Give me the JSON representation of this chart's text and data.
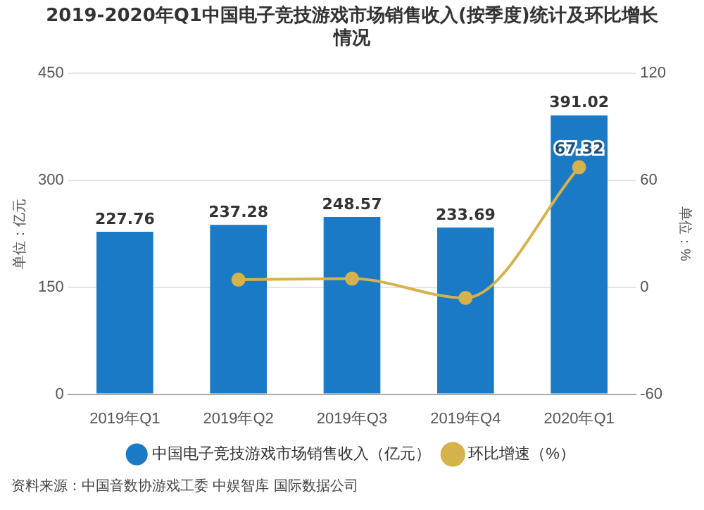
{
  "chart_data": {
    "type": "bar",
    "title": "2019-2020年Q1中国电子竞技游戏市场销售收入(按季度)统计及环比增长情况",
    "categories": [
      "2019年Q1",
      "2019年Q2",
      "2019年Q3",
      "2019年Q4",
      "2020年Q1"
    ],
    "series": [
      {
        "name": "中国电子竞技游戏市场销售收入（亿元）",
        "color": "#1a7ac6",
        "values": [
          227.76,
          237.28,
          248.57,
          233.69,
          391.02
        ],
        "data_labels": true
      },
      {
        "name": "环比增速（%）",
        "type": "line",
        "axis": "y2",
        "color": "#d6b24c",
        "marker": "circle",
        "values": [
          null,
          4.2,
          4.8,
          -6,
          67.32
        ],
        "value_labels": [
          null,
          null,
          null,
          null,
          "67.32"
        ]
      }
    ],
    "ylabel": "单位：亿元",
    "y2label": "单位：%",
    "ylim": [
      0,
      450
    ],
    "yticks": [
      0,
      150,
      300,
      450
    ],
    "y2lim": [
      -60,
      120
    ],
    "y2ticks": [
      -60,
      0,
      60,
      120
    ],
    "grid": "y",
    "legend": "bottom",
    "annotations": [
      "资料来源：中国音数协游戏工委 中娱智库 国际数据公司"
    ]
  }
}
